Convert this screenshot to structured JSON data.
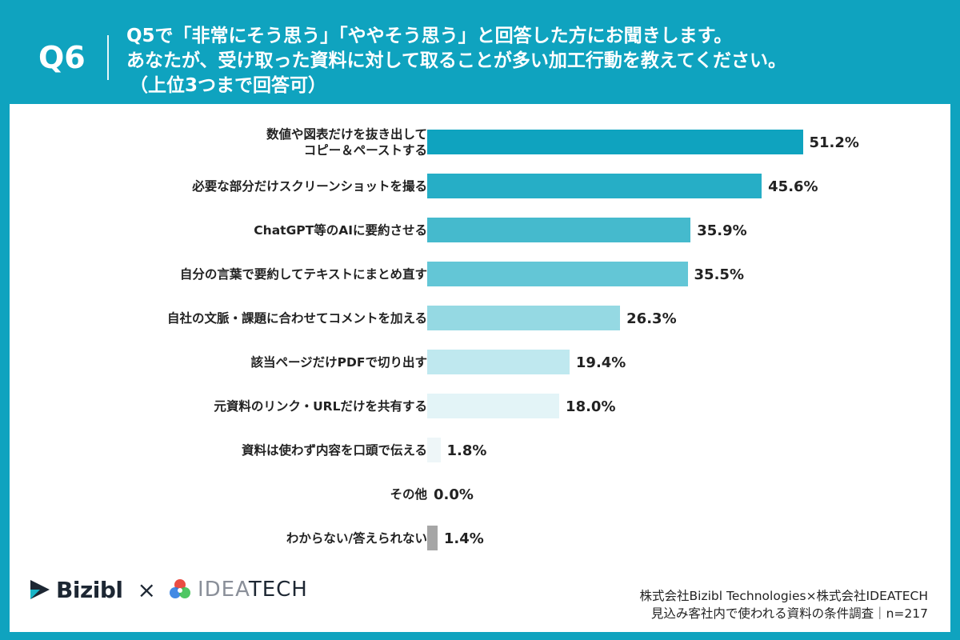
{
  "header": {
    "qnum": "Q6",
    "line1": "Q5で「非常にそう思う」「ややそう思う」と回答した方にお聞きします。",
    "line2": "あなたが、受け取った資料に対して取ることが多い加工行動を教えてください。",
    "line3": "（上位3つまで回答可）"
  },
  "chart_data": {
    "type": "bar",
    "orientation": "horizontal",
    "categories": [
      "数値や図表だけを抜き出して\nコピー＆ペーストする",
      "必要な部分だけスクリーンショットを撮る",
      "ChatGPT等のAIに要約させる",
      "自分の言葉で要約してテキストにまとめ直す",
      "自社の文脈・課題に合わせてコメントを加える",
      "該当ページだけPDFで切り出す",
      "元資料のリンク・URLだけを共有する",
      "資料は使わず内容を口頭で伝える",
      "その他",
      "わからない/答えられない"
    ],
    "values": [
      51.2,
      45.6,
      35.9,
      35.5,
      26.3,
      19.4,
      18.0,
      1.8,
      0.0,
      1.4
    ],
    "value_labels": [
      "51.2%",
      "45.6%",
      "35.9%",
      "35.5%",
      "26.3%",
      "19.4%",
      "18.0%",
      "1.8%",
      "0.0%",
      "1.4%"
    ],
    "colors": [
      "#0fa3bf",
      "#26aec6",
      "#45bacd",
      "#63c6d6",
      "#95d9e3",
      "#bfe8ef",
      "#e3f4f7",
      "#eef6f8",
      "#f3f8fa",
      "#a6a6a6"
    ],
    "xlim": [
      0,
      60
    ],
    "grid": false,
    "legend": "none"
  },
  "footer": {
    "logo1": "Bizibl",
    "times": "×",
    "logo2_light": "IDEA",
    "logo2_dark": "TECH",
    "source_line1": "株式会社Bizibl Technologies×株式会社IDEATECH",
    "source_line2": "見込み客社内で使われる資料の条件調査｜n=217"
  }
}
